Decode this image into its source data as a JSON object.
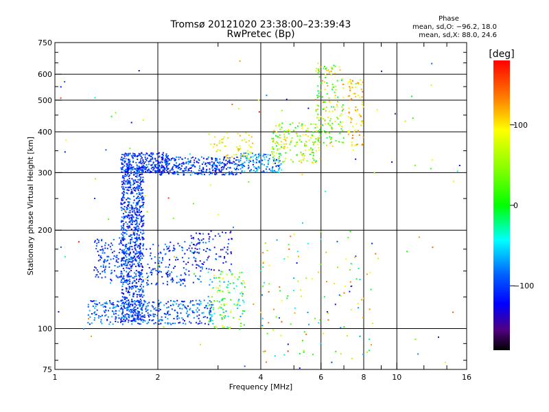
{
  "chart_data": {
    "type": "scatter",
    "title": "Tromsø 20121020 23:38:00–23:39:43",
    "subtitle": "RwPretec (Bp)",
    "xlabel": "Frequency [MHz]",
    "ylabel": "Stationary phase Virtual Height [km]",
    "x_scale": "log",
    "y_scale": "log",
    "xlim": [
      1,
      16
    ],
    "ylim": [
      75,
      750
    ],
    "x_ticks": [
      1,
      2,
      4,
      6,
      8,
      10,
      16
    ],
    "y_ticks": [
      75,
      100,
      200,
      300,
      400,
      500,
      600,
      750
    ],
    "grid": true,
    "stats": {
      "heading": "Phase",
      "line_o": "mean, sd,O: −96.2, 18.0",
      "line_x": "mean, sd,X:  88.0, 24.6"
    },
    "colorbar": {
      "label": "[deg]",
      "range": [
        -180,
        180
      ],
      "ticks": [
        100,
        0,
        -100
      ]
    },
    "clusters": [
      {
        "name": "",
        "f": [
          1.56,
          1.82
        ],
        "h": [
          105,
          315
        ],
        "phase": [
          -130,
          -75
        ],
        "n": 900
      },
      {
        "name": "",
        "f": [
          1.56,
          2.15
        ],
        "h": [
          300,
          345
        ],
        "phase": [
          -130,
          -80
        ],
        "n": 260
      },
      {
        "name": "",
        "f": [
          2.0,
          3.5
        ],
        "h": [
          295,
          335
        ],
        "phase": [
          -135,
          -70
        ],
        "n": 320
      },
      {
        "name": "",
        "f": [
          3.5,
          4.6
        ],
        "h": [
          300,
          345
        ],
        "phase": [
          -120,
          -40
        ],
        "n": 130
      },
      {
        "name": "",
        "f": [
          4.3,
          6.0
        ],
        "h": [
          320,
          430
        ],
        "phase": [
          -10,
          120
        ],
        "n": 170
      },
      {
        "name": "",
        "f": [
          5.8,
          7.0
        ],
        "h": [
          360,
          640
        ],
        "phase": [
          -20,
          130
        ],
        "n": 150
      },
      {
        "name": "",
        "f": [
          7.2,
          8.0
        ],
        "h": [
          360,
          580
        ],
        "phase": [
          80,
          140
        ],
        "n": 80
      },
      {
        "name": "",
        "f": [
          2.8,
          3.8
        ],
        "h": [
          330,
          400
        ],
        "phase": [
          60,
          125
        ],
        "n": 60
      },
      {
        "name": "",
        "f": [
          1.3,
          1.6
        ],
        "h": [
          140,
          190
        ],
        "phase": [
          -120,
          -80
        ],
        "n": 110
      },
      {
        "name": "",
        "f": [
          1.85,
          2.7
        ],
        "h": [
          135,
          185
        ],
        "phase": [
          -130,
          -70
        ],
        "n": 150
      },
      {
        "name": "",
        "f": [
          2.5,
          3.3
        ],
        "h": [
          150,
          200
        ],
        "phase": [
          -150,
          -80
        ],
        "n": 90
      },
      {
        "name": "",
        "f": [
          1.25,
          2.9
        ],
        "h": [
          103,
          122
        ],
        "phase": [
          -130,
          -60
        ],
        "n": 350
      },
      {
        "name": "",
        "f": [
          2.8,
          3.6
        ],
        "h": [
          100,
          150
        ],
        "phase": [
          -80,
          110
        ],
        "n": 140
      },
      {
        "name": "",
        "f": [
          4.0,
          8.5
        ],
        "h": [
          80,
          200
        ],
        "phase": [
          -120,
          150
        ],
        "n": 110
      },
      {
        "name": "",
        "f": [
          1.0,
          16
        ],
        "h": [
          75,
          680
        ],
        "phase": [
          -150,
          170
        ],
        "n": 120
      }
    ]
  }
}
